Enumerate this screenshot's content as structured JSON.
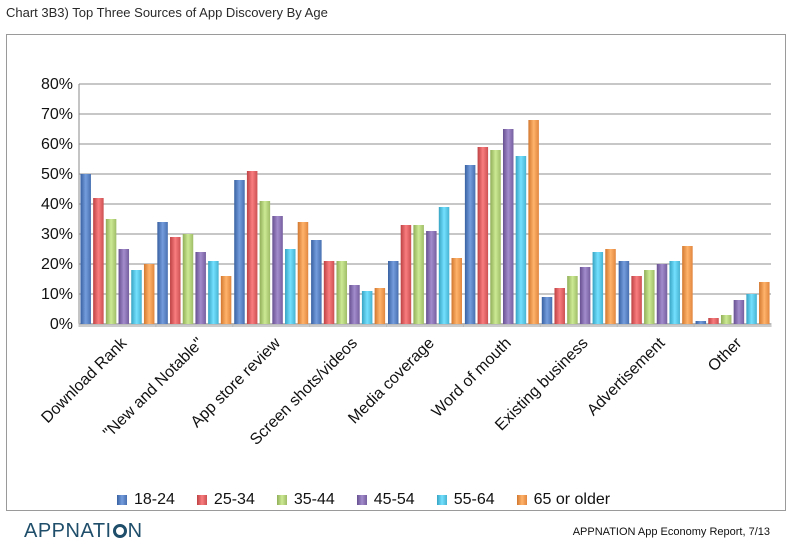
{
  "header": {
    "title": "Chart 3B3) Top Three Sources of App Discovery By Age"
  },
  "chart_data": {
    "type": "bar",
    "ylim": [
      0,
      80
    ],
    "y_ticks": [
      "0%",
      "10%",
      "20%",
      "30%",
      "40%",
      "50%",
      "60%",
      "70%",
      "80%"
    ],
    "grid": true,
    "legend_position": "bottom",
    "categories": [
      "Download Rank",
      "\"New and Notable\"",
      "App store review",
      "Screen shots/videos",
      "Media coverage",
      "Word of mouth",
      "Existing business",
      "Advertisement",
      "Other"
    ],
    "series": [
      {
        "name": "18-24",
        "color": "#5b84c4",
        "values": [
          50,
          34,
          48,
          28,
          21,
          53,
          9,
          21,
          1
        ]
      },
      {
        "name": "25-34",
        "color": "#e06466",
        "values": [
          42,
          29,
          51,
          21,
          33,
          59,
          12,
          16,
          2
        ]
      },
      {
        "name": "35-44",
        "color": "#b3d07a",
        "values": [
          35,
          30,
          41,
          21,
          33,
          58,
          16,
          18,
          3
        ]
      },
      {
        "name": "45-54",
        "color": "#8a73b3",
        "values": [
          25,
          24,
          36,
          13,
          31,
          65,
          19,
          20,
          8
        ]
      },
      {
        "name": "55-64",
        "color": "#5bc7e6",
        "values": [
          18,
          21,
          25,
          11,
          39,
          56,
          24,
          21,
          10
        ]
      },
      {
        "name": "65 or older",
        "color": "#f59a52",
        "values": [
          20,
          16,
          34,
          12,
          22,
          68,
          25,
          26,
          14
        ]
      }
    ]
  },
  "footer": {
    "brand_prefix": "APPNATI",
    "brand_suffix": "N",
    "note": "APPNATION App Economy Report, 7/13"
  }
}
